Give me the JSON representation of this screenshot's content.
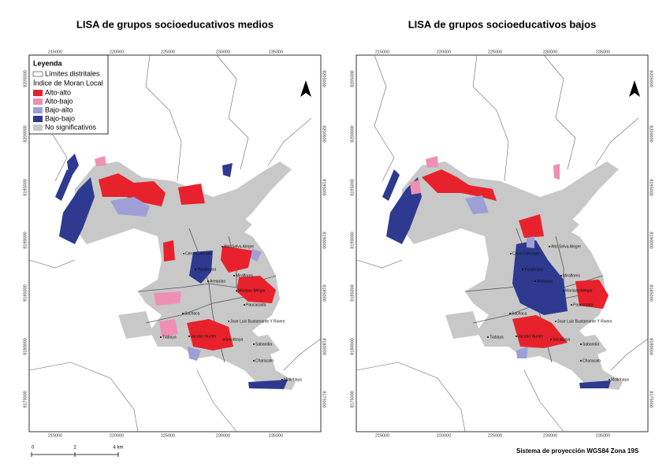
{
  "maps": [
    {
      "title": "LISA de grupos socioeducativos medios"
    },
    {
      "title": "LISA de grupos socioeducativos bajos"
    }
  ],
  "grid": {
    "x_labels": [
      "215000",
      "220000",
      "225000",
      "230000",
      "235000"
    ],
    "y_labels": [
      "8205000",
      "8200000",
      "8195000",
      "8190000",
      "8185000",
      "8180000",
      "8175000"
    ]
  },
  "places": [
    "Cerro Colorado",
    "Alto Selva Alegre",
    "Yanahuara",
    "Miraflores",
    "Arequipa",
    "Mariano Melgar",
    "Paucarpata",
    "Sachaca",
    "Jose Luis Bustamante Y Rivero",
    "Tiabaya",
    "Jacobo Hunter",
    "Socabaya",
    "Sabandia",
    "Characato",
    "Mollebaya"
  ],
  "legend": {
    "title": "Leyenda",
    "boundary": "Límites distritales",
    "subtitle": "Índice de Moran Local",
    "items": [
      "Alto-alto",
      "Alto-bajo",
      "Bajo-alto",
      "Bajo-bajo",
      "No significativos"
    ]
  },
  "scale_bar": {
    "labels": [
      "0",
      "2",
      "4 km"
    ]
  },
  "projection": "Sistema de proyección WGS84 Zona 19S"
}
